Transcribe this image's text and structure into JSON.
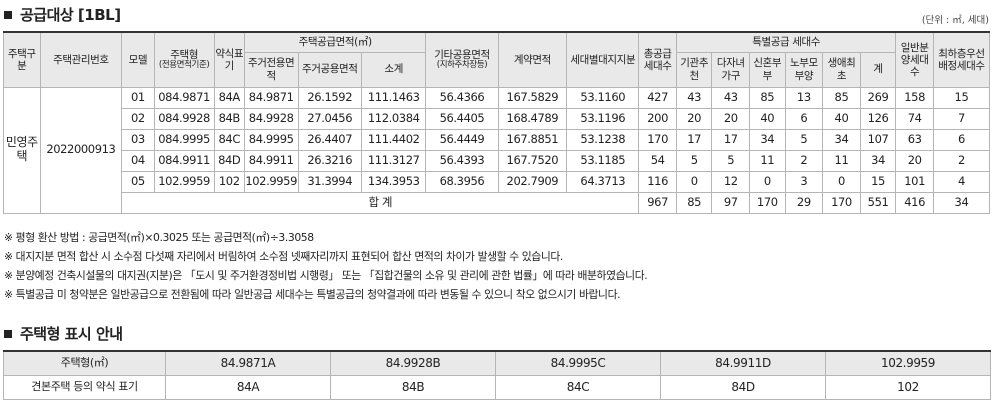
{
  "section1": {
    "title": "공급대상 [1BL]",
    "unit": "(단위 : ㎡, 세대)"
  },
  "headers": {
    "type_class": "주택구분",
    "mgmt_no": "주택관리번호",
    "model": "모델",
    "house_type": "주택형",
    "house_type_sub": "(전용면적기준)",
    "abbr": "약식표기",
    "supply_area": "주택공급면적(㎡)",
    "exclusive": "주거전용면적",
    "common": "주거공용면적",
    "subtotal": "소계",
    "other_common": "기타공용면적",
    "other_common_sub": "(지하주차장등)",
    "contract_area": "계약면적",
    "land_share": "세대별대지지분",
    "total_units": "총공급세대수",
    "special": "특별공급 세대수",
    "inst": "기관추천",
    "multi": "다자녀가구",
    "newlywed": "신혼부부",
    "parents": "노부모부양",
    "firsttime": "생애최초",
    "sum": "계",
    "general": "일반분양세대수",
    "lowest": "최하층우선배정세대수"
  },
  "group": {
    "type_class": "민영주택",
    "mgmt_no": "2022000913"
  },
  "rows": [
    [
      "01",
      "084.9871",
      "84A",
      "84.9871",
      "26.1592",
      "111.1463",
      "56.4366",
      "167.5829",
      "53.1160",
      "427",
      "43",
      "43",
      "85",
      "13",
      "85",
      "269",
      "158",
      "15"
    ],
    [
      "02",
      "084.9928",
      "84B",
      "84.9928",
      "27.0456",
      "112.0384",
      "56.4405",
      "168.4789",
      "53.1196",
      "200",
      "20",
      "20",
      "40",
      "6",
      "40",
      "126",
      "74",
      "7"
    ],
    [
      "03",
      "084.9995",
      "84C",
      "84.9995",
      "26.4407",
      "111.4402",
      "56.4449",
      "167.8851",
      "53.1238",
      "170",
      "17",
      "17",
      "34",
      "5",
      "34",
      "107",
      "63",
      "6"
    ],
    [
      "04",
      "084.9911",
      "84D",
      "84.9911",
      "26.3216",
      "111.3127",
      "56.4393",
      "167.7520",
      "53.1185",
      "54",
      "5",
      "5",
      "11",
      "2",
      "11",
      "34",
      "20",
      "2"
    ],
    [
      "05",
      "102.9959",
      "102",
      "102.9959",
      "31.3994",
      "134.3953",
      "68.3956",
      "202.7909",
      "64.3713",
      "116",
      "0",
      "12",
      "0",
      "3",
      "0",
      "15",
      "101",
      "4"
    ]
  ],
  "total": {
    "label": "합 계",
    "values": [
      "967",
      "85",
      "97",
      "170",
      "29",
      "170",
      "551",
      "416",
      "34"
    ]
  },
  "notes": [
    "※ 평형 환산 방법 : 공급면적(㎡)×0.3025 또는 공급면적(㎡)÷3.3058",
    "※ 대지지분 면적 합산 시 소수점 다섯째 자리에서 버림하여 소수점 넷째자리까지 표현되어 합산 면적의 차이가 발생할 수 있습니다.",
    "※ 분양예정 건축시설물의 대지권(지분)은 「도시 및 주거환경정비법 시행령」 또는 「집합건물의 소유 및 관리에 관한 법률」에 따라 배분하였습니다.",
    "※ 특별공급 미 청약분은 일반공급으로 전환됨에 따라 일반공급 세대수는 특별공급의 청약결과에 따라 변동될 수 있으니 착오 없으시기 바랍니다."
  ],
  "section2": {
    "title": "주택형 표시 안내"
  },
  "types_table": {
    "row1_label": "주택형(㎡)",
    "row1": [
      "84.9871A",
      "84.9928B",
      "84.9995C",
      "84.9911D",
      "102.9959"
    ],
    "row2_label": "견본주택 등의 약식 표기",
    "row2": [
      "84A",
      "84B",
      "84C",
      "84D",
      "102"
    ]
  }
}
